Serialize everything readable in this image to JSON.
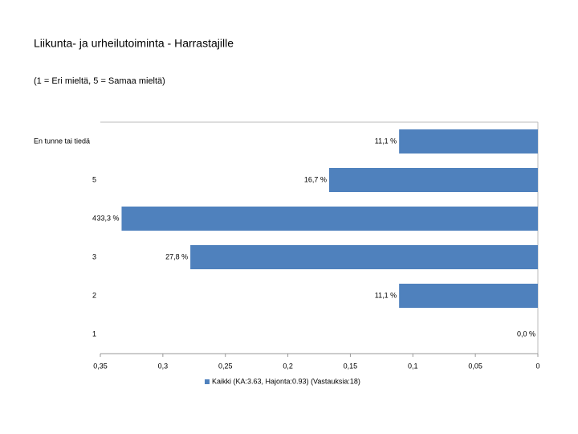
{
  "chart_data": {
    "type": "hbar",
    "title": "Liikunta- ja urheilutoiminta - Harrastajille",
    "subtitle": "(1 = Eri mieltä, 5 = Samaa mieltä)",
    "categories": [
      "En tunne tai tiedä",
      "5",
      "4",
      "3",
      "2",
      "1"
    ],
    "series": [
      {
        "name": "Kaikki (KA:3.63, Hajonta:0.93) (Vastauksia:18)",
        "color": "#4f81bd",
        "values": [
          0.111,
          0.167,
          0.333,
          0.278,
          0.111,
          0
        ],
        "value_labels": [
          "11,1 %",
          "16,7 %",
          "33,3 %",
          "27,8 %",
          "11,1 %",
          "0,0 %"
        ]
      }
    ],
    "xlim": [
      0.35,
      0
    ],
    "xticks": [
      {
        "value": 0.35,
        "label": "0,35"
      },
      {
        "value": 0.3,
        "label": "0,3"
      },
      {
        "value": 0.25,
        "label": "0,25"
      },
      {
        "value": 0.2,
        "label": "0,2"
      },
      {
        "value": 0.15,
        "label": "0,15"
      },
      {
        "value": 0.1,
        "label": "0,1"
      },
      {
        "value": 0.05,
        "label": "0,05"
      },
      0
    ],
    "legend": "bottom"
  }
}
